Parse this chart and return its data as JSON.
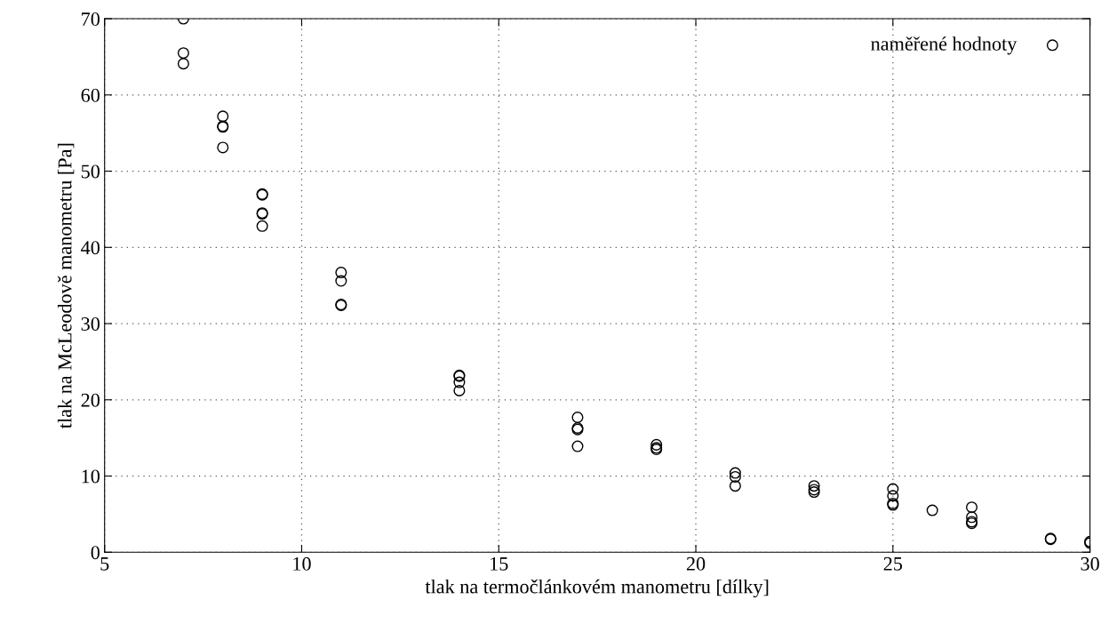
{
  "chart_data": {
    "type": "scatter",
    "xlabel": "tlak na termočlánkovém manometru [dílky]",
    "ylabel": "tlak na McLeodově manometru [Pa]",
    "xlim": [
      5,
      30
    ],
    "ylim": [
      0,
      70
    ],
    "xticks": [
      5,
      10,
      15,
      20,
      25,
      30
    ],
    "yticks": [
      0,
      10,
      20,
      30,
      40,
      50,
      60,
      70
    ],
    "grid": true,
    "legend": "top right",
    "marker": "circle",
    "series": [
      {
        "name": "naměřené hodnoty",
        "color": "#000000",
        "x": [
          7,
          7,
          7,
          8,
          8,
          8,
          8,
          9,
          9,
          9,
          9,
          9,
          11,
          11,
          11,
          11,
          14,
          14,
          14,
          14,
          17,
          17,
          17,
          17,
          19,
          19,
          19,
          21,
          21,
          21,
          23,
          23,
          23,
          25,
          25,
          25,
          25,
          26,
          27,
          27,
          27,
          27,
          29,
          29,
          30,
          30
        ],
        "values": [
          70.0,
          65.5,
          64.1,
          57.2,
          55.9,
          55.8,
          53.1,
          46.9,
          47.0,
          44.5,
          44.4,
          42.8,
          36.7,
          35.6,
          32.5,
          32.4,
          23.2,
          23.1,
          22.3,
          21.2,
          17.7,
          16.3,
          16.1,
          13.9,
          14.1,
          13.7,
          13.5,
          10.4,
          9.9,
          8.7,
          8.7,
          8.2,
          7.9,
          8.3,
          7.4,
          6.4,
          6.2,
          5.5,
          5.9,
          4.6,
          4.0,
          3.8,
          1.8,
          1.7,
          1.4,
          1.2
        ]
      }
    ]
  }
}
